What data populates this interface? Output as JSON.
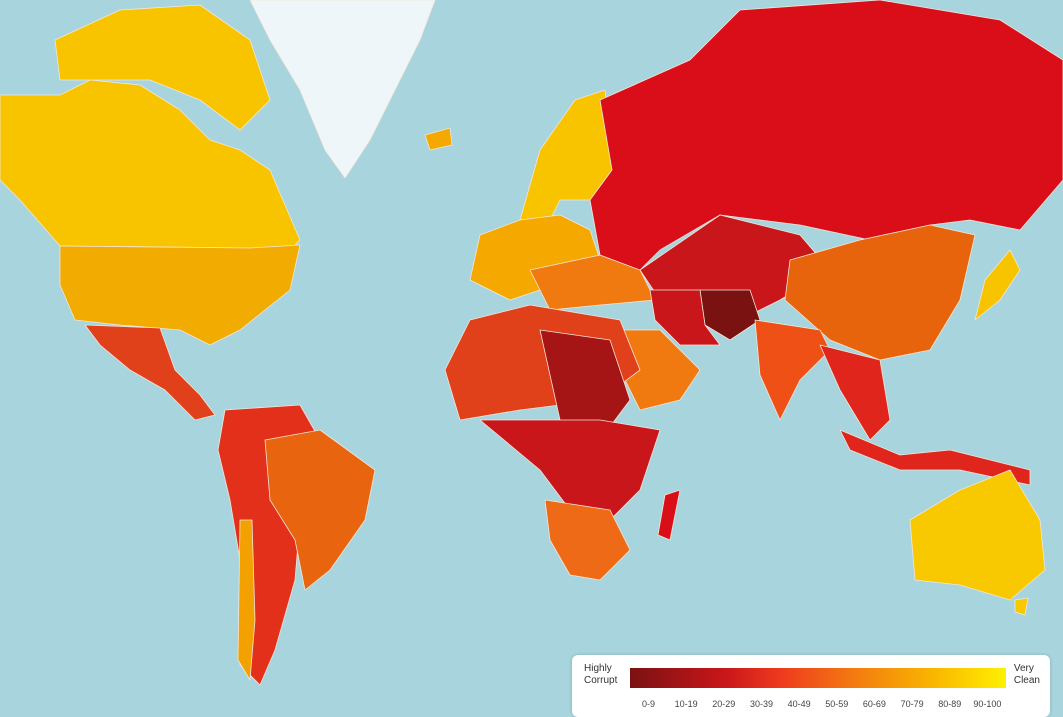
{
  "legend": {
    "left_label": [
      "Highly",
      "Corrupt"
    ],
    "right_label": [
      "Very",
      "Clean"
    ],
    "ranges": [
      "0-9",
      "10-19",
      "20-29",
      "30-39",
      "40-49",
      "50-59",
      "60-69",
      "70-79",
      "80-89",
      "90-100"
    ],
    "colors": [
      "#7a1212",
      "#a51515",
      "#c8161a",
      "#e0261c",
      "#ee4a1a",
      "#f37010",
      "#f69008",
      "#f9b400",
      "#fbd400",
      "#fff000"
    ]
  },
  "colors": {
    "ocean": "#a8d4dd",
    "no_data": "#eef6fa"
  }
}
